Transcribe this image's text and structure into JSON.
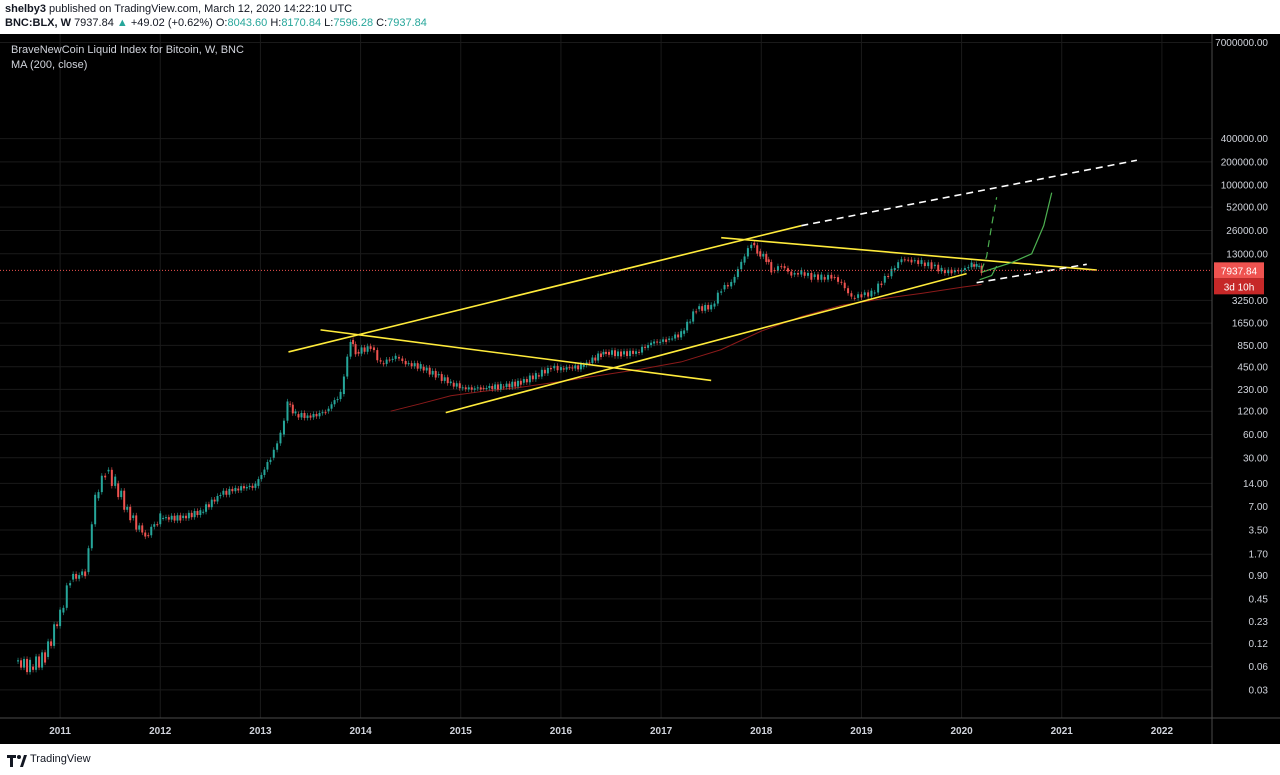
{
  "header": {
    "author": "shelby3",
    "published": "published on TradingView.com, March 12, 2020 14:22:10 UTC",
    "symbol": "BNC:BLX, W",
    "last": "7937.84",
    "arrow": "▲",
    "change": "+49.02 (+0.62%)",
    "open_label": "O:",
    "open": "8043.60",
    "high_label": "H:",
    "high": "8170.84",
    "low_label": "L:",
    "low": "7596.28",
    "close_label": "C:",
    "close": "7937.84"
  },
  "legend": {
    "title": "BraveNewCoin Liquid Index for Bitcoin, W, BNC",
    "indicator": "MA (200, close)"
  },
  "price_tag": {
    "value": "7937.84",
    "countdown": "3d 10h"
  },
  "footer": {
    "brand": "TradingView"
  },
  "colors": {
    "background": "#000000",
    "up_candle": "#26a69a",
    "down_candle": "#ef5350",
    "trendline": "#ffeb3b",
    "projection": "#4caf50",
    "ma_line": "#8b1a1a",
    "dashed": "#ffffff",
    "price_line": "#ef5350"
  },
  "chart_data": {
    "type": "line",
    "scale": "log",
    "title": "BraveNewCoin Liquid Index for Bitcoin, W, BNC",
    "y_ticks": [
      "7000000.00",
      "400000.00",
      "200000.00",
      "100000.00",
      "52000.00",
      "26000.00",
      "13000.00",
      "3250.00",
      "1650.00",
      "850.00",
      "450.00",
      "230.00",
      "120.00",
      "60.00",
      "30.00",
      "14.00",
      "7.00",
      "3.50",
      "1.70",
      "0.90",
      "0.45",
      "0.23",
      "0.12",
      "0.06",
      "0.03"
    ],
    "x_ticks": [
      "2011",
      "2012",
      "2013",
      "2014",
      "2015",
      "2016",
      "2017",
      "2018",
      "2019",
      "2020",
      "2021",
      "2022"
    ],
    "xlim": [
      2010.4,
      2022.5
    ],
    "ylim": [
      0.013,
      9000000
    ],
    "last_price": 7937.84,
    "series": [
      {
        "name": "BNC:BLX, W",
        "x": [
          2010.55,
          2010.7,
          2010.85,
          2011.0,
          2011.1,
          2011.25,
          2011.35,
          2011.45,
          2011.55,
          2011.7,
          2011.85,
          2012.0,
          2012.2,
          2012.4,
          2012.6,
          2012.75,
          2012.95,
          2013.1,
          2013.2,
          2013.27,
          2013.35,
          2013.5,
          2013.65,
          2013.8,
          2013.9,
          2013.95,
          2014.1,
          2014.2,
          2014.35,
          2014.45,
          2014.6,
          2014.75,
          2014.9,
          2015.05,
          2015.2,
          2015.4,
          2015.6,
          2015.75,
          2015.9,
          2016.0,
          2016.2,
          2016.4,
          2016.45,
          2016.6,
          2016.75,
          2016.9,
          2017.05,
          2017.2,
          2017.35,
          2017.5,
          2017.6,
          2017.7,
          2017.8,
          2017.9,
          2017.96,
          2018.05,
          2018.1,
          2018.2,
          2018.3,
          2018.4,
          2018.5,
          2018.6,
          2018.7,
          2018.8,
          2018.9,
          2019.0,
          2019.1,
          2019.2,
          2019.3,
          2019.4,
          2019.5,
          2019.6,
          2019.7,
          2019.8,
          2019.9,
          2020.0,
          2020.1,
          2020.15,
          2020.2
        ],
        "values": [
          0.07,
          0.06,
          0.08,
          0.3,
          0.8,
          1.0,
          9,
          20,
          14,
          5,
          3,
          5,
          5,
          6,
          10,
          12,
          13,
          30,
          60,
          150,
          110,
          100,
          120,
          200,
          1000,
          700,
          800,
          500,
          600,
          500,
          450,
          350,
          280,
          230,
          240,
          250,
          280,
          350,
          430,
          430,
          450,
          650,
          700,
          650,
          700,
          900,
          1000,
          1200,
          2500,
          2700,
          4500,
          5500,
          10000,
          18000,
          14000,
          11000,
          8000,
          9000,
          7000,
          7500,
          6500,
          6500,
          6500,
          5500,
          3500,
          3800,
          4000,
          5500,
          8000,
          11000,
          10500,
          10000,
          9000,
          8000,
          7500,
          8000,
          9500,
          9000,
          7937.84
        ]
      },
      {
        "name": "MA (200, close)",
        "x": [
          2014.3,
          2014.6,
          2014.9,
          2015.2,
          2015.6,
          2016.0,
          2016.4,
          2016.8,
          2017.2,
          2017.6,
          2018.0,
          2018.4,
          2018.8,
          2019.2,
          2019.6,
          2020.0,
          2020.2
        ],
        "values": [
          120,
          150,
          190,
          215,
          245,
          290,
          350,
          420,
          520,
          750,
          1300,
          2000,
          2800,
          3400,
          4000,
          4800,
          5200
        ]
      }
    ],
    "annotations": [
      {
        "kind": "trendline",
        "style": "solid",
        "color": "#ffeb3b",
        "points": [
          [
            2013.28,
            700
          ],
          [
            2018.4,
            30000
          ]
        ]
      },
      {
        "kind": "trendline",
        "style": "solid",
        "color": "#ffeb3b",
        "points": [
          [
            2013.6,
            1350
          ],
          [
            2017.5,
            300
          ]
        ]
      },
      {
        "kind": "trendline",
        "style": "solid",
        "color": "#ffeb3b",
        "points": [
          [
            2014.85,
            115
          ],
          [
            2020.05,
            7200
          ]
        ]
      },
      {
        "kind": "trendline",
        "style": "solid",
        "color": "#ffeb3b",
        "points": [
          [
            2017.6,
            21000
          ],
          [
            2021.35,
            8000
          ]
        ]
      },
      {
        "kind": "trendline",
        "style": "dashed",
        "color": "#ffffff",
        "points": [
          [
            2018.4,
            30000
          ],
          [
            2021.75,
            210000
          ]
        ]
      },
      {
        "kind": "trendline",
        "style": "dashed",
        "color": "#ffffff",
        "points": [
          [
            2020.15,
            5500
          ],
          [
            2021.25,
            9500
          ]
        ]
      },
      {
        "kind": "projection",
        "style": "dashed",
        "color": "#4caf50",
        "points": [
          [
            2020.2,
            8000
          ],
          [
            2020.25,
            12000
          ],
          [
            2020.3,
            30000
          ],
          [
            2020.35,
            70000
          ]
        ]
      },
      {
        "kind": "projection",
        "style": "solid",
        "color": "#4caf50",
        "points": [
          [
            2020.2,
            7500
          ],
          [
            2020.5,
            10000
          ],
          [
            2020.7,
            13000
          ],
          [
            2020.82,
            30000
          ],
          [
            2020.9,
            80000
          ]
        ]
      },
      {
        "kind": "projection",
        "style": "solid",
        "color": "#4caf50",
        "points": [
          [
            2020.18,
            6000
          ],
          [
            2020.3,
            6800
          ],
          [
            2020.35,
            9000
          ]
        ]
      }
    ]
  }
}
